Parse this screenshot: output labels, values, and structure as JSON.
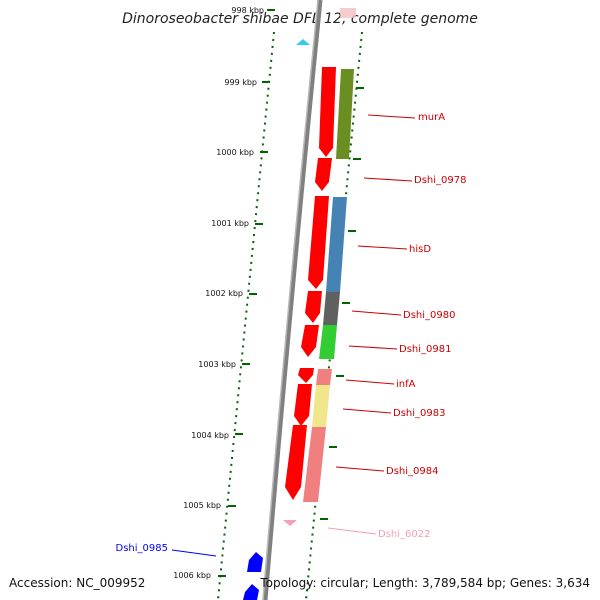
{
  "title": "Dinoroseobacter shibae DFL 12, complete genome",
  "footer": {
    "accession": "Accession: NC_009952",
    "topology": "Topology: circular; Length: 3,789,584 bp; Genes: 3,634"
  },
  "ticks": [
    "998 kbp",
    "999 kbp",
    "1000 kbp",
    "1001 kbp",
    "1002 kbp",
    "1003 kbp",
    "1004 kbp",
    "1005 kbp",
    "1006 kbp"
  ],
  "colors": {
    "backbone": "#808080",
    "cds": "#ff0000",
    "tick": "#006400",
    "label": "#cc0000",
    "reverse_gene": "#0000ff",
    "rna": "#f4a0b4",
    "marker": "#33ccee"
  },
  "genes": [
    {
      "name": "murA",
      "color": "#6b8e23"
    },
    {
      "name": "Dshi_0978",
      "color": null
    },
    {
      "name": "hisD",
      "color": "#4682b4"
    },
    {
      "name": "Dshi_0980",
      "color": "#606060"
    },
    {
      "name": "Dshi_0981",
      "color": "#32cd32"
    },
    {
      "name": "infA",
      "color": "#f08080"
    },
    {
      "name": "Dshi_0983",
      "color": "#f0e68c"
    },
    {
      "name": "Dshi_0984",
      "color": "#f08080"
    },
    {
      "name": "Dshi_6022",
      "color": "#f4a0b4"
    },
    {
      "name": "Dshi_0985",
      "color": "#0000ff"
    }
  ]
}
